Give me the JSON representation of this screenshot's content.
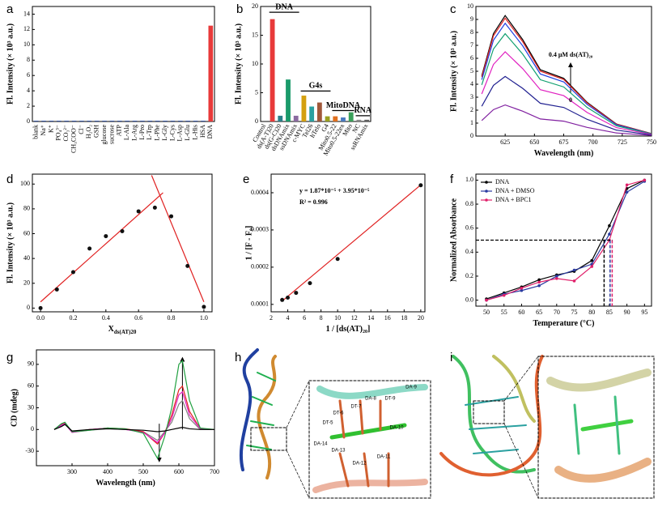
{
  "chart_data": [
    {
      "panel": "a",
      "type": "bar",
      "y_label": "Fl. Intensity (× 10³ a.u.)",
      "categories": [
        "blank",
        "Na⁺",
        "K⁺",
        "PO₄³⁻",
        "CO₃²⁻",
        "CH₃COO⁻",
        "Cl⁻",
        "H₂O₂",
        "GSH",
        "glucose",
        "sucrose",
        "ATP",
        "L-Ala",
        "L-Arg",
        "L-Pro",
        "L-Trp",
        "L-Phe",
        "L-Gly",
        "L-Cys",
        "L-Asp",
        "L-Glu",
        "L-His",
        "HSA",
        "DNA"
      ],
      "values": [
        0.1,
        0.1,
        0.1,
        0.1,
        0.1,
        0.1,
        0.1,
        0.1,
        0.1,
        0.1,
        0.1,
        0.1,
        0.1,
        0.1,
        0.1,
        0.1,
        0.1,
        0.1,
        0.1,
        0.1,
        0.1,
        0.1,
        0.1,
        12.5
      ],
      "colors": [
        "#3050a0",
        "#3050a0",
        "#3050a0",
        "#3050a0",
        "#3050a0",
        "#3050a0",
        "#3050a0",
        "#3050a0",
        "#3050a0",
        "#3050a0",
        "#3050a0",
        "#3050a0",
        "#3050a0",
        "#3050a0",
        "#3050a0",
        "#3050a0",
        "#3050a0",
        "#3050a0",
        "#3050a0",
        "#3050a0",
        "#3050a0",
        "#3050a0",
        "#3050a0",
        "#e83a3a"
      ],
      "ylim": [
        0,
        15
      ],
      "yticks": [
        0,
        2,
        4,
        6,
        8,
        10,
        12,
        14
      ]
    },
    {
      "panel": "b",
      "type": "bar",
      "y_label": "Fl. Intensity (× 10³ a.u.)",
      "categories": [
        "Control",
        "ds(A-T)20",
        "ds(G-C)20",
        "dsDNAmix",
        "ssDNAmix",
        "c-MYC",
        "Tel26",
        "hTelo",
        "G4",
        "Mito0.5-22",
        "Mito0.5-22ex",
        "Mito",
        "NC",
        "ssRNAmix"
      ],
      "values": [
        0.1,
        17.8,
        1.0,
        7.3,
        1.0,
        4.5,
        2.6,
        3.3,
        0.9,
        0.9,
        0.7,
        1.6,
        0.3,
        0.3
      ],
      "colors": [
        "#555555",
        "#e83a3a",
        "#2a7f8a",
        "#1a9a6a",
        "#8a6aa0",
        "#d4a010",
        "#2aa0a0",
        "#a0583a",
        "#9aa020",
        "#e07020",
        "#4a7ac0",
        "#3aa05a",
        "#888888",
        "#606060"
      ],
      "ylim": [
        0,
        20
      ],
      "yticks": [
        0,
        5,
        10,
        15,
        20
      ],
      "groups": [
        {
          "label": "DNA",
          "from": 1,
          "to": 4,
          "y": 19
        },
        {
          "label": "G4s",
          "from": 5,
          "to": 8,
          "y": 5.3
        },
        {
          "label": "MitoDNA",
          "from": 9,
          "to": 11,
          "y": 1.9
        },
        {
          "label": "RNA",
          "from": 12,
          "to": 13,
          "y": 1.0
        }
      ]
    },
    {
      "panel": "c",
      "type": "line",
      "y_label": "Fl. Intensity (× 10³ a.u.)",
      "x_label": "Wavelength (nm)",
      "x": [
        605,
        615,
        625,
        640,
        655,
        675,
        695,
        720,
        750
      ],
      "series": [
        {
          "color": "#000000",
          "values": [
            4.65,
            7.91,
            9.3,
            7.44,
            5.12,
            4.46,
            2.6,
            0.93,
            0.19
          ]
        },
        {
          "color": "#e02020",
          "values": [
            4.55,
            7.74,
            9.1,
            7.28,
            5.01,
            4.37,
            2.55,
            0.91,
            0.18
          ]
        },
        {
          "color": "#2040e0",
          "values": [
            4.35,
            7.4,
            8.7,
            6.96,
            4.79,
            4.18,
            2.44,
            0.87,
            0.17
          ]
        },
        {
          "color": "#10a070",
          "values": [
            3.95,
            6.72,
            7.9,
            6.32,
            4.35,
            3.79,
            2.21,
            0.79,
            0.16
          ]
        },
        {
          "color": "#e020c0",
          "values": [
            3.25,
            5.53,
            6.5,
            5.2,
            3.58,
            3.12,
            1.82,
            0.65,
            0.13
          ]
        },
        {
          "color": "#202090",
          "values": [
            2.3,
            3.91,
            4.6,
            3.68,
            2.53,
            2.21,
            1.29,
            0.46,
            0.09
          ]
        },
        {
          "color": "#8020a0",
          "values": [
            1.2,
            2.04,
            2.4,
            1.92,
            1.32,
            1.15,
            0.67,
            0.24,
            0.05
          ]
        }
      ],
      "xlim": [
        600,
        750
      ],
      "xticks": [
        625,
        650,
        675,
        700,
        725,
        750
      ],
      "ylim": [
        0,
        10
      ],
      "yticks": [
        0,
        1,
        2,
        3,
        4,
        5,
        6,
        7,
        8,
        9,
        10
      ],
      "annotations": [
        "0.4 μM ds(AT)₂₀",
        "0"
      ]
    },
    {
      "panel": "d",
      "type": "scatter",
      "y_label": "Fl. Intensity (× 10³ a.u.)",
      "x_label": "X",
      "x_label_sub": "ds(AT)20",
      "x": [
        0,
        0.1,
        0.2,
        0.3,
        0.4,
        0.5,
        0.6,
        0.7,
        0.8,
        0.9,
        1.0
      ],
      "values": [
        0,
        15,
        29,
        48,
        58,
        62,
        78,
        81,
        74,
        34,
        1
      ],
      "color": "#111111",
      "fits": [
        {
          "x": [
            0,
            0.75
          ],
          "y": [
            5,
            93
          ]
        },
        {
          "x": [
            0.68,
            1.0
          ],
          "y": [
            107,
            5
          ]
        }
      ],
      "fit_color": "#e02020",
      "xlim": [
        -0.05,
        1.05
      ],
      "xticks": [
        {
          "value": 0,
          "label": "0.0"
        },
        0.2,
        0.4,
        0.6,
        0.8,
        {
          "value": 1,
          "label": "1.0"
        }
      ],
      "ylim": [
        -3,
        108
      ],
      "yticks": [
        0,
        20,
        40,
        60,
        80,
        100
      ]
    },
    {
      "panel": "e",
      "type": "scatter",
      "y_label": "1 / [F - F₀]",
      "x_label": "1 / [ds(AT)₂₀]",
      "x": [
        3.33,
        4,
        5,
        6.67,
        10,
        20
      ],
      "values": [
        0.000112,
        0.000118,
        0.000131,
        0.000157,
        0.000222,
        0.00042
      ],
      "color": "#111111",
      "fits": [
        {
          "x": [
            3.33,
            20
          ],
          "y": [
            0.000109,
            0.000421
          ]
        }
      ],
      "fit_color": "#e02020",
      "xlim": [
        2,
        20.5
      ],
      "xticks": [
        2,
        4,
        6,
        8,
        10,
        12,
        14,
        16,
        18,
        20
      ],
      "ylim": [
        8e-05,
        0.00045
      ],
      "yticks": [
        0.0001,
        0.0002,
        0.0003,
        0.0004
      ],
      "annotations": [
        "y = 1.87*10⁻⁵ + 3.95*10⁻⁵",
        "R² = 0.996"
      ]
    },
    {
      "panel": "f",
      "type": "line",
      "markers": true,
      "y_label": "Normalized Absorbance",
      "x_label": "Temperature (°C)",
      "x": [
        50,
        55,
        60,
        65,
        70,
        75,
        80,
        85,
        90,
        95
      ],
      "series": [
        {
          "name": "DNA",
          "color": "#000000",
          "values": [
            0.01,
            0.06,
            0.11,
            0.17,
            0.21,
            0.24,
            0.33,
            0.62,
            0.93,
            1.0
          ]
        },
        {
          "name": "DNA + DMSO",
          "color": "#2a3aa0",
          "values": [
            0.0,
            0.05,
            0.08,
            0.12,
            0.2,
            0.25,
            0.3,
            0.55,
            0.9,
            0.99
          ]
        },
        {
          "name": "DNA + BPC1",
          "color": "#e0206a",
          "values": [
            0.0,
            0.04,
            0.1,
            0.15,
            0.18,
            0.16,
            0.28,
            0.5,
            0.96,
            1.0
          ]
        }
      ],
      "xlim": [
        47,
        97
      ],
      "xticks": [
        50,
        55,
        60,
        65,
        70,
        75,
        80,
        85,
        90,
        95
      ],
      "ylim": [
        -0.05,
        1.05
      ],
      "yticks": [
        {
          "value": 0,
          "label": "0.0"
        },
        0.2,
        0.4,
        0.6,
        0.8,
        {
          "value": 1,
          "label": "1.0"
        }
      ],
      "legend": "upper left",
      "ref_y": 0.5,
      "ref_x": [
        83.5,
        85.2,
        85.8
      ],
      "ref_colors": [
        "#000000",
        "#2a3aa0",
        "#e0206a"
      ]
    },
    {
      "panel": "g",
      "type": "line",
      "y_label": "CD (mdeg)",
      "x_label": "Wavelength (nm)",
      "x": [
        250,
        270,
        280,
        300,
        350,
        400,
        450,
        500,
        540,
        560,
        580,
        600,
        610,
        630,
        660,
        700
      ],
      "series": [
        {
          "color": "#808080",
          "values": [
            0,
            5,
            8,
            -4,
            -1,
            1,
            0,
            -3,
            -15,
            -3,
            10,
            35,
            40,
            15,
            0,
            0
          ]
        },
        {
          "color": "#e02020",
          "values": [
            0,
            7,
            9,
            -3,
            0,
            2,
            1,
            -3,
            -20,
            -5,
            20,
            55,
            60,
            25,
            1,
            0
          ]
        },
        {
          "color": "#e020c0",
          "values": [
            0,
            6,
            8,
            -4,
            0,
            2,
            0,
            -4,
            -18,
            -5,
            15,
            48,
            52,
            20,
            1,
            0
          ]
        },
        {
          "color": "#20a040",
          "values": [
            0,
            8,
            10,
            -3,
            -1,
            2,
            1,
            -5,
            -40,
            -10,
            30,
            90,
            95,
            40,
            2,
            0
          ]
        },
        {
          "color": "#000000",
          "values": [
            0,
            4,
            7,
            -2,
            0,
            1,
            0,
            -1,
            -3,
            -2,
            0,
            2,
            3,
            1,
            0,
            0
          ]
        }
      ],
      "xlim": [
        200,
        700
      ],
      "xticks": [
        300,
        400,
        500,
        600,
        700
      ],
      "ylim": [
        -50,
        110
      ],
      "yticks": [
        -30,
        0,
        30,
        60,
        90
      ]
    }
  ],
  "structures": [
    {
      "panel": "h",
      "labels": [
        "DA-9",
        "DA-8",
        "DT-9",
        "DT-7",
        "DT-6",
        "DT-5",
        "DA-10",
        "DA-14",
        "DA-13",
        "DA-11",
        "DA-12"
      ]
    },
    {
      "panel": "i"
    }
  ]
}
